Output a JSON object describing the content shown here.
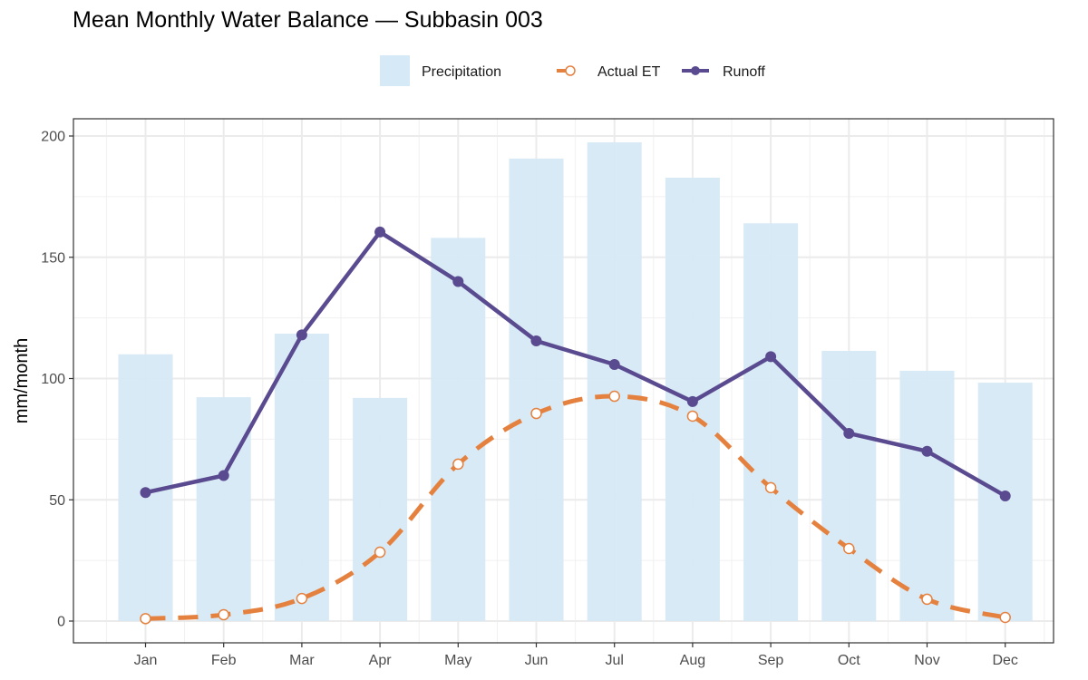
{
  "chart_data": {
    "type": "bar",
    "title": "Mean Monthly Water Balance — Subbasin 003",
    "xlabel": "",
    "ylabel": "mm/month",
    "ylim": [
      -8,
      208
    ],
    "yticks": [
      0,
      50,
      100,
      150,
      200
    ],
    "grid": true,
    "legend_position": "top",
    "categories": [
      "Jan",
      "Feb",
      "Mar",
      "Apr",
      "May",
      "Jun",
      "Jul",
      "Aug",
      "Sep",
      "Oct",
      "Nov",
      "Dec"
    ],
    "series": [
      {
        "name": "Precipitation",
        "type": "bar",
        "color": "#d6e9f6",
        "values": [
          110,
          92.3,
          118.5,
          92,
          158,
          190.7,
          197.4,
          182.8,
          164,
          111.4,
          103.2,
          98.3
        ]
      },
      {
        "name": "Actual ET",
        "type": "line",
        "style": "dashed",
        "marker": "open-circle",
        "color": "#e5813f",
        "values": [
          1,
          2.6,
          9.3,
          28.4,
          64.7,
          85.6,
          92.7,
          84.5,
          55,
          29.9,
          9,
          1.5
        ]
      },
      {
        "name": "Runoff",
        "type": "line",
        "style": "solid",
        "marker": "filled-circle",
        "color": "#5a4a8f",
        "values": [
          53,
          60,
          118,
          160.4,
          140,
          115.5,
          105.8,
          90.5,
          109,
          77.4,
          70,
          51.6
        ]
      }
    ]
  }
}
